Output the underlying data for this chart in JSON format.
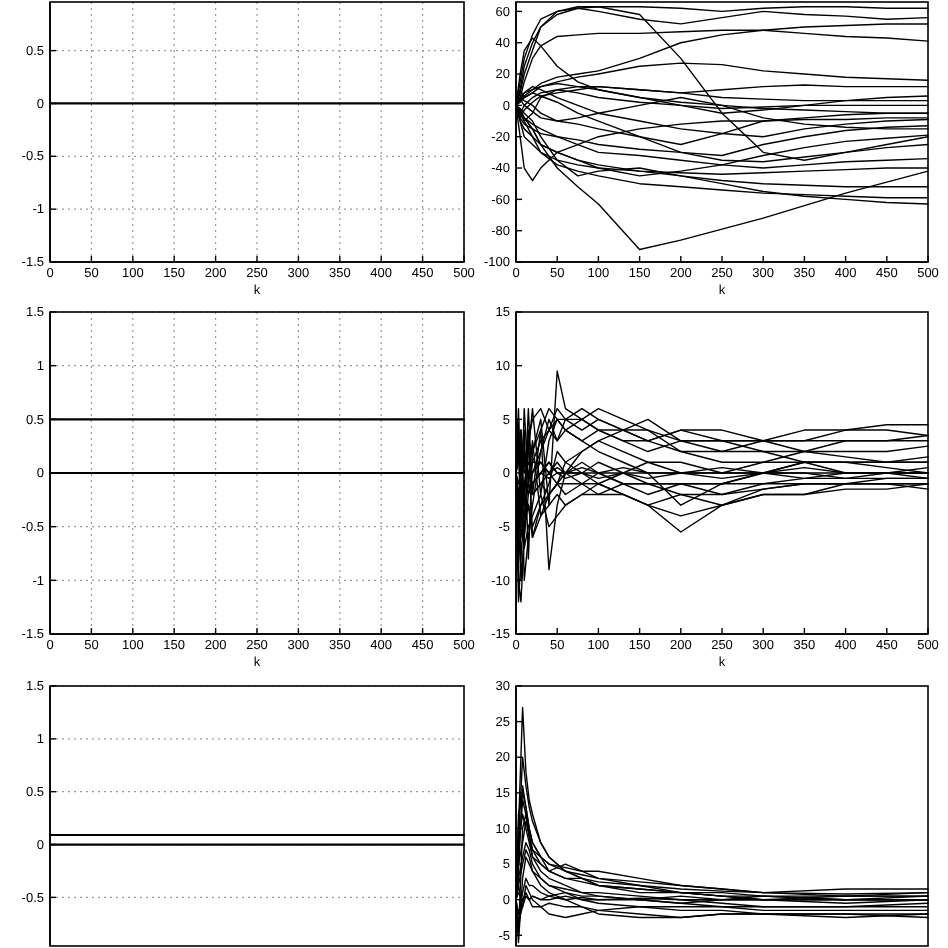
{
  "chart_data": [
    {
      "type": "line",
      "xlabel": "k",
      "x": [
        0,
        500
      ],
      "xlim": [
        0,
        500
      ],
      "xticks": [
        0,
        50,
        100,
        150,
        200,
        250,
        300,
        350,
        400,
        450,
        500
      ],
      "ylim": [
        -1.5,
        0.96
      ],
      "yticks": [
        -1.5,
        -1,
        -0.5,
        0,
        0.5
      ],
      "grid": true,
      "series": [
        {
          "color": "#000000",
          "values": [
            0,
            0
          ]
        }
      ]
    },
    {
      "type": "line",
      "xlabel": "k",
      "x": [
        0,
        5,
        10,
        20,
        30,
        50,
        75,
        100,
        150,
        200,
        250,
        300,
        350,
        400,
        450,
        500
      ],
      "xlim": [
        0,
        500
      ],
      "xticks": [
        0,
        50,
        100,
        150,
        200,
        250,
        300,
        350,
        400,
        450,
        500
      ],
      "ylim": [
        -100,
        66
      ],
      "yticks": [
        -100,
        -80,
        -60,
        -40,
        -20,
        0,
        20,
        40,
        60
      ],
      "series": [
        {
          "color": "#000000",
          "values": [
            0,
            -3,
            -8,
            -15,
            -25,
            -40,
            -52,
            -63,
            -92,
            -86,
            -79,
            -72,
            -64,
            -56,
            -49,
            -42
          ]
        },
        {
          "color": "#000000",
          "values": [
            0,
            10,
            25,
            40,
            50,
            58,
            62,
            60,
            55,
            52,
            56,
            60,
            58,
            57,
            55,
            56
          ]
        },
        {
          "color": "#000000",
          "values": [
            0,
            5,
            15,
            30,
            38,
            44,
            45,
            46,
            46,
            47,
            48,
            48,
            46,
            44,
            43,
            41
          ]
        },
        {
          "color": "#000000",
          "values": [
            0,
            3,
            6,
            10,
            14,
            18,
            20,
            22,
            30,
            40,
            45,
            48,
            50,
            51,
            52,
            52
          ]
        },
        {
          "color": "#000000",
          "values": [
            0,
            20,
            35,
            43,
            38,
            25,
            15,
            10,
            5,
            2,
            0,
            -2,
            -3,
            -4,
            -5,
            -5
          ]
        },
        {
          "color": "#000000",
          "values": [
            0,
            -20,
            -40,
            -48,
            -40,
            -30,
            -25,
            -20,
            -15,
            -12,
            -10,
            -10,
            -9,
            -9,
            -8,
            -8
          ]
        },
        {
          "color": "#000000",
          "values": [
            0,
            5,
            8,
            10,
            12,
            15,
            18,
            20,
            25,
            27,
            26,
            22,
            20,
            18,
            17,
            16
          ]
        },
        {
          "color": "#000000",
          "values": [
            0,
            -5,
            -10,
            -5,
            5,
            10,
            12,
            12,
            10,
            8,
            10,
            12,
            13,
            12,
            12,
            12
          ]
        },
        {
          "color": "#000000",
          "values": [
            0,
            10,
            5,
            8,
            12,
            14,
            12,
            10,
            5,
            0,
            -5,
            -3,
            0,
            3,
            5,
            6
          ]
        },
        {
          "color": "#000000",
          "values": [
            0,
            -5,
            0,
            5,
            8,
            10,
            8,
            5,
            2,
            0,
            -2,
            -1,
            0,
            0,
            0,
            0
          ]
        },
        {
          "color": "#000000",
          "values": [
            0,
            5,
            3,
            0,
            -5,
            -10,
            -12,
            -15,
            -20,
            -25,
            -18,
            -10,
            -8,
            -6,
            -5,
            -5
          ]
        },
        {
          "color": "#000000",
          "values": [
            0,
            3,
            8,
            12,
            10,
            5,
            0,
            -5,
            -10,
            -15,
            -18,
            -20,
            -15,
            -12,
            -10,
            -9
          ]
        },
        {
          "color": "#000000",
          "values": [
            0,
            -8,
            -12,
            -15,
            -18,
            -20,
            -22,
            -25,
            -28,
            -30,
            -32,
            -25,
            -20,
            -16,
            -14,
            -13
          ]
        },
        {
          "color": "#000000",
          "values": [
            0,
            -10,
            -15,
            -20,
            -25,
            -30,
            -35,
            -40,
            -45,
            -42,
            -38,
            -32,
            -27,
            -23,
            -21,
            -19
          ]
        },
        {
          "color": "#000000",
          "values": [
            0,
            2,
            5,
            8,
            6,
            2,
            -5,
            -10,
            -20,
            -30,
            -35,
            -36,
            -33,
            -30,
            -27,
            -25
          ]
        },
        {
          "color": "#000000",
          "values": [
            0,
            -5,
            -8,
            -12,
            -15,
            -20,
            -25,
            -30,
            -32,
            -35,
            -38,
            -40,
            -38,
            -36,
            -35,
            -34
          ]
        },
        {
          "color": "#000000",
          "values": [
            0,
            -10,
            -20,
            -25,
            -30,
            -35,
            -38,
            -40,
            -42,
            -43,
            -44,
            -43,
            -42,
            -41,
            -40,
            -40
          ]
        },
        {
          "color": "#000000",
          "values": [
            0,
            -2,
            -5,
            -10,
            -20,
            -35,
            -45,
            -42,
            -40,
            -45,
            -48,
            -50,
            -51,
            -52,
            -52,
            -52
          ]
        },
        {
          "color": "#000000",
          "values": [
            0,
            -5,
            -10,
            -20,
            -30,
            -38,
            -42,
            -45,
            -50,
            -52,
            -54,
            -56,
            -57,
            -58,
            -59,
            -59
          ]
        },
        {
          "color": "#000000",
          "values": [
            0,
            -3,
            -8,
            -15,
            -25,
            -30,
            -35,
            -38,
            -42,
            -45,
            -50,
            -55,
            -58,
            -60,
            -62,
            -63
          ]
        },
        {
          "color": "#000000",
          "values": [
            0,
            15,
            30,
            45,
            55,
            60,
            62,
            63,
            58,
            30,
            -5,
            -30,
            -35,
            -30,
            -25,
            -20
          ]
        },
        {
          "color": "#000000",
          "values": [
            0,
            8,
            20,
            35,
            50,
            60,
            63,
            63,
            63,
            62,
            60,
            62,
            63,
            63,
            62,
            62
          ]
        },
        {
          "color": "#000000",
          "values": [
            0,
            -8,
            -3,
            2,
            6,
            8,
            10,
            12,
            10,
            8,
            5,
            4,
            3,
            3,
            3,
            3
          ]
        },
        {
          "color": "#000000",
          "values": [
            0,
            4,
            0,
            -4,
            -8,
            -10,
            -8,
            -5,
            0,
            5,
            0,
            -8,
            -12,
            -14,
            -15,
            -15
          ]
        }
      ]
    },
    {
      "type": "line",
      "xlabel": "k",
      "x": [
        0,
        500
      ],
      "xlim": [
        0,
        500
      ],
      "xticks": [
        0,
        50,
        100,
        150,
        200,
        250,
        300,
        350,
        400,
        450,
        500
      ],
      "ylim": [
        -1.5,
        1.5
      ],
      "yticks": [
        -1.5,
        -1,
        -0.5,
        0,
        0.5,
        1,
        1.5
      ],
      "grid": true,
      "series": [
        {
          "color": "#000000",
          "values": [
            0.5,
            0.5
          ]
        },
        {
          "color": "#000000",
          "values": [
            0,
            0
          ]
        }
      ]
    },
    {
      "type": "line",
      "xlabel": "k",
      "x": [
        0,
        3,
        6,
        10,
        15,
        20,
        30,
        40,
        50,
        60,
        80,
        100,
        130,
        160,
        200,
        250,
        300,
        350,
        400,
        450,
        500
      ],
      "xlim": [
        0,
        500
      ],
      "xticks": [
        0,
        50,
        100,
        150,
        200,
        250,
        300,
        350,
        400,
        450,
        500
      ],
      "ylim": [
        -15,
        15
      ],
      "yticks": [
        -15,
        -10,
        -5,
        0,
        5,
        10,
        15
      ],
      "series": [
        {
          "color": "#000000",
          "values": [
            0,
            6,
            -5,
            4,
            -8,
            2,
            5,
            -3,
            9.5,
            6,
            5,
            4,
            3,
            3,
            2,
            2,
            3,
            3,
            4,
            4.5,
            4.5
          ]
        },
        {
          "color": "#000000",
          "values": [
            0,
            -12,
            -8,
            -3,
            6,
            -2,
            4,
            -9,
            -3,
            0,
            2,
            3,
            4,
            3,
            4,
            4,
            3,
            2,
            3,
            3,
            3
          ]
        },
        {
          "color": "#000000",
          "values": [
            0,
            5,
            -10,
            -6,
            2,
            6,
            -2,
            3,
            5,
            4,
            5,
            6,
            5,
            4,
            2,
            1,
            1,
            2,
            2,
            2,
            2.5
          ]
        },
        {
          "color": "#000000",
          "values": [
            0,
            -8,
            4,
            -10,
            -6,
            -3,
            2,
            5,
            3,
            4,
            3,
            2,
            1,
            0,
            -3,
            -1,
            0,
            1,
            1,
            1,
            1.5
          ]
        },
        {
          "color": "#000000",
          "values": [
            0,
            3,
            -3,
            6,
            -1,
            3,
            -4,
            -2,
            -1,
            1,
            2,
            3,
            2,
            1,
            1,
            0,
            1,
            1,
            1,
            1,
            1
          ]
        },
        {
          "color": "#000000",
          "values": [
            0,
            -5,
            2,
            -2,
            4,
            -6,
            -3,
            -1,
            2,
            1,
            0,
            -1,
            -2,
            -3,
            -5.5,
            -3,
            -2,
            -2,
            -1.5,
            -1.5,
            -1
          ]
        },
        {
          "color": "#000000",
          "values": [
            0,
            2,
            -1,
            1,
            -2,
            -1,
            0,
            1,
            0,
            0,
            -1,
            -2,
            -2,
            -3,
            -4,
            -3,
            -2,
            -2,
            -1,
            -1,
            -1
          ]
        },
        {
          "color": "#000000",
          "values": [
            0,
            -3,
            0,
            -5,
            -3,
            -6,
            -4,
            -3,
            -2,
            -3,
            -2,
            -1,
            -2,
            -3,
            -2,
            -2,
            -1,
            -1,
            -1,
            -0.5,
            -0.5
          ]
        },
        {
          "color": "#000000",
          "values": [
            0,
            1,
            2,
            0,
            1,
            0,
            1,
            0,
            1,
            0,
            0,
            1,
            0,
            0,
            0,
            0,
            0,
            0,
            0,
            0,
            0
          ]
        },
        {
          "color": "#000000",
          "values": [
            0,
            -1,
            0,
            1,
            0,
            -1,
            0,
            1,
            0,
            0,
            1,
            0,
            0,
            1,
            0,
            0,
            0,
            1,
            0,
            0,
            0.5
          ]
        },
        {
          "color": "#000000",
          "values": [
            0,
            4,
            1,
            -2,
            3,
            5,
            6,
            4,
            3,
            5,
            6,
            5,
            4,
            5,
            3,
            2,
            2,
            1,
            1,
            0.5,
            0
          ]
        },
        {
          "color": "#000000",
          "values": [
            0,
            -6,
            -3,
            -7,
            -5,
            -4,
            -2,
            -5,
            -4,
            -3,
            -2,
            -2,
            -1,
            -1,
            -1,
            -2,
            -1.5,
            -1,
            -1,
            -1,
            -1
          ]
        },
        {
          "color": "#000000",
          "values": [
            0,
            2,
            4,
            1,
            3,
            2,
            4,
            6,
            5,
            4,
            3,
            4,
            3,
            2,
            3,
            3,
            3,
            3,
            3,
            3,
            3.5
          ]
        },
        {
          "color": "#000000",
          "values": [
            0,
            -2,
            -1,
            -3,
            -1,
            -2,
            -1,
            -2,
            -1,
            -2,
            -1,
            -1,
            0,
            -1,
            -1,
            -1,
            0,
            -0.5,
            0,
            0,
            0
          ]
        },
        {
          "color": "#000000",
          "values": [
            0,
            -10,
            -12,
            -6,
            -2,
            0,
            2,
            4,
            6,
            5,
            4,
            5,
            4,
            4,
            3,
            3,
            2,
            2,
            1.5,
            1,
            1
          ]
        },
        {
          "color": "#000000",
          "values": [
            0,
            5,
            -6,
            -4,
            -1,
            1,
            3,
            4,
            5,
            5,
            5,
            4,
            4,
            3,
            4,
            3,
            3,
            4,
            4,
            4,
            3.5
          ]
        },
        {
          "color": "#000000",
          "values": [
            0,
            -4,
            1,
            -3,
            -1,
            -2,
            -1,
            0,
            -1,
            0,
            0,
            0,
            -1,
            -1,
            -2,
            -3,
            -1.5,
            -1,
            -1,
            -1,
            -1.5
          ]
        },
        {
          "color": "#000000",
          "values": [
            0,
            3,
            0,
            2,
            0,
            1,
            1,
            0,
            0.5,
            0,
            0.5,
            0,
            0.5,
            0,
            0,
            0.5,
            0,
            0.5,
            0,
            0,
            0
          ]
        },
        {
          "color": "#000000",
          "values": [
            0,
            -2,
            0,
            -1,
            0,
            -1,
            0,
            -0.5,
            0,
            -0.5,
            0,
            -0.5,
            0,
            -0.5,
            0,
            -0.5,
            0,
            0,
            -0.5,
            0,
            -0.5
          ]
        },
        {
          "color": "#000000",
          "values": [
            0,
            -9,
            -4,
            -2,
            -3,
            -5,
            -3,
            -2,
            -1,
            -1,
            -1,
            0,
            -1,
            -2,
            -1,
            -1,
            -1,
            -0.5,
            -0.5,
            -0.5,
            -0.5
          ]
        }
      ]
    },
    {
      "type": "line",
      "x": [
        0,
        500
      ],
      "xlim": [
        0,
        500
      ],
      "ylim": [
        -0.96,
        1.5
      ],
      "yticks": [
        -0.5,
        0,
        0.5,
        1,
        1.5
      ],
      "grid": true,
      "tick_labels": "y",
      "series": [
        {
          "color": "#000000",
          "values": [
            0.09,
            0.09
          ]
        },
        {
          "color": "#000000",
          "values": [
            0,
            0
          ]
        }
      ]
    },
    {
      "type": "line",
      "x": [
        0,
        3,
        8,
        12,
        16,
        20,
        30,
        40,
        60,
        80,
        100,
        150,
        200,
        250,
        300,
        400,
        500
      ],
      "xlim": [
        0,
        500
      ],
      "ylim": [
        -6.5,
        30
      ],
      "yticks": [
        -5,
        0,
        5,
        10,
        15,
        20,
        25,
        30
      ],
      "tick_labels": "y",
      "series": [
        {
          "color": "#000000",
          "values": [
            0,
            10,
            27,
            18,
            14,
            12,
            8,
            6,
            4,
            3.5,
            3,
            2.5,
            2,
            1.5,
            1,
            1.5,
            1.5
          ]
        },
        {
          "color": "#000000",
          "values": [
            0,
            8,
            20,
            16,
            13,
            11,
            8,
            6,
            4,
            3,
            2.5,
            2,
            1.5,
            1.2,
            1,
            0.8,
            1
          ]
        },
        {
          "color": "#000000",
          "values": [
            0,
            12,
            15,
            13,
            10,
            8,
            6,
            5,
            4.5,
            4,
            4,
            3,
            2,
            1.5,
            1,
            0.5,
            0.5
          ]
        },
        {
          "color": "#000000",
          "values": [
            0,
            -5,
            10,
            12,
            9,
            7,
            5,
            4,
            3,
            3,
            2,
            1.5,
            1,
            0.5,
            0,
            0,
            0
          ]
        },
        {
          "color": "#000000",
          "values": [
            0,
            5,
            8,
            11,
            9,
            6,
            4,
            3,
            2,
            1,
            1,
            0.5,
            0,
            -0.5,
            -1,
            -1,
            -0.5
          ]
        },
        {
          "color": "#000000",
          "values": [
            0,
            -6,
            3,
            6,
            5,
            4,
            3,
            2,
            1,
            0,
            -0.5,
            -1,
            -1.5,
            -1.5,
            -2,
            -2,
            -2
          ]
        },
        {
          "color": "#000000",
          "values": [
            0,
            2,
            5,
            7,
            6,
            4,
            2,
            1,
            0,
            -1,
            -1.5,
            -2,
            -2.5,
            -2,
            -2,
            -2,
            -2.5
          ]
        },
        {
          "color": "#000000",
          "values": [
            0,
            -3,
            -1,
            2,
            1,
            0,
            -1,
            -2,
            -2.5,
            -2,
            -1.5,
            -1,
            -1,
            -1,
            -1,
            -1,
            -1
          ]
        },
        {
          "color": "#000000",
          "values": [
            0,
            1,
            0,
            0.5,
            0,
            0.5,
            0,
            0.5,
            0,
            0.3,
            0,
            0.2,
            0,
            0,
            0,
            0,
            0
          ]
        },
        {
          "color": "#000000",
          "values": [
            0,
            -2,
            1,
            3,
            2,
            2,
            1,
            0.5,
            1,
            0.5,
            0.5,
            0,
            0.5,
            0,
            0.5,
            0,
            0.5
          ]
        },
        {
          "color": "#000000",
          "values": [
            0,
            8,
            12,
            10,
            8,
            6,
            5,
            4,
            5,
            4,
            3,
            2,
            1,
            0.5,
            0.5,
            0,
            0
          ]
        },
        {
          "color": "#000000",
          "values": [
            0,
            3,
            6,
            8,
            7,
            5,
            3,
            2,
            1.5,
            1,
            0.5,
            0,
            -0.5,
            -1,
            -1.5,
            -1.5,
            -1.5
          ]
        },
        {
          "color": "#000000",
          "values": [
            0,
            4,
            16,
            13,
            10,
            8,
            6,
            4,
            3,
            2.5,
            2,
            1.5,
            1,
            1,
            0.5,
            0.5,
            0.5
          ]
        },
        {
          "color": "#000000",
          "values": [
            0,
            -4,
            0,
            1,
            0,
            -1,
            -1,
            -0.5,
            -1,
            -1,
            -2,
            -2.5,
            -2.5,
            -2,
            -2,
            -2.5,
            -2
          ]
        },
        {
          "color": "#000000",
          "values": [
            0,
            2,
            -1,
            0.5,
            0,
            0.5,
            0,
            0,
            0.5,
            0,
            0,
            0,
            -0.5,
            0,
            0,
            -0.5,
            0
          ]
        },
        {
          "color": "#000000",
          "values": [
            0,
            6,
            14,
            12,
            9,
            7,
            6,
            5,
            4,
            3,
            2,
            1,
            1,
            0.5,
            0,
            0.5,
            1
          ]
        }
      ]
    }
  ]
}
